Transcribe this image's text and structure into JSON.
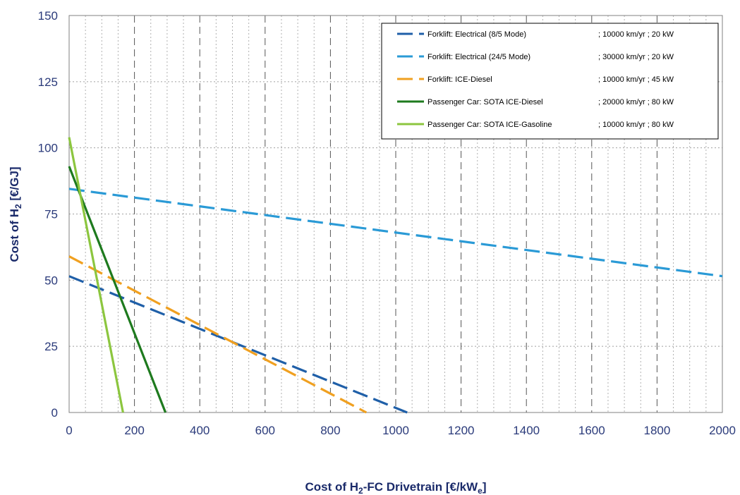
{
  "chart_data": {
    "type": "line",
    "xlabel": "Cost of H",
    "xlabel_sub": "2",
    "xlabel_rest": "-FC Drivetrain [€/kW",
    "xlabel_sub2": "e",
    "xlabel_end": "]",
    "ylabel": "Cost of H",
    "ylabel_sub": "2",
    "ylabel_rest": " [€/GJ]",
    "xlim": [
      0,
      2000
    ],
    "ylim": [
      0,
      150
    ],
    "x_ticks": [
      "0",
      "200",
      "400",
      "600",
      "800",
      "1000",
      "1200",
      "1400",
      "1600",
      "1800",
      "2000"
    ],
    "y_ticks": [
      "0",
      "25",
      "50",
      "75",
      "100",
      "125",
      "150"
    ],
    "grid": true,
    "legend_position": "top-right",
    "series": [
      {
        "name": "Forklift: Electrical (8/5 Mode)",
        "detail": "; 10000 km/yr ; 20 kW",
        "color": "#1f5fa8",
        "dash": "dashed",
        "x": [
          0,
          1035
        ],
        "y": [
          51.5,
          0
        ]
      },
      {
        "name": "Forklift: Electrical (24/5 Mode)",
        "detail": "; 30000 km/yr ; 20 kW",
        "color": "#2a9ad6",
        "dash": "dashed",
        "x": [
          0,
          2000
        ],
        "y": [
          84.5,
          51.5
        ]
      },
      {
        "name": "Forklift: ICE-Diesel",
        "detail": "; 10000 km/yr ; 45 kW",
        "color": "#f0a020",
        "dash": "dashed",
        "x": [
          0,
          910
        ],
        "y": [
          59,
          0
        ]
      },
      {
        "name": "Passenger Car: SOTA ICE-Diesel",
        "detail": "; 20000 km/yr ; 80 kW",
        "color": "#1e7a1e",
        "dash": "solid",
        "x": [
          0,
          295
        ],
        "y": [
          93,
          0
        ]
      },
      {
        "name": "Passenger Car: SOTA ICE-Gasoline",
        "detail": "; 10000 km/yr ; 80 kW",
        "color": "#8cc63f",
        "dash": "solid",
        "x": [
          0,
          165
        ],
        "y": [
          104,
          0
        ]
      }
    ]
  }
}
